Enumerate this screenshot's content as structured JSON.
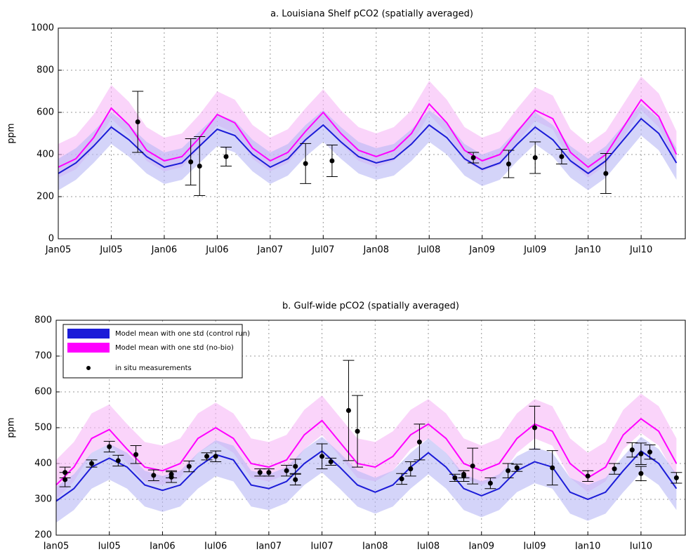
{
  "chart_data": [
    {
      "type": "line",
      "title": "a. Louisiana Shelf pCO2 (spatially averaged)",
      "y_label": "ppm",
      "grid": true,
      "xlim": [
        "2005-01",
        "2010-12"
      ],
      "ylim": [
        0,
        1000
      ],
      "yticks": [
        0,
        200,
        400,
        600,
        800,
        1000
      ],
      "xticks": [
        {
          "value": "2005-01",
          "label": "Jan05"
        },
        {
          "value": "2005-07",
          "label": "Jul05"
        },
        {
          "value": "2006-01",
          "label": "Jan06"
        },
        {
          "value": "2006-07",
          "label": "Jul06"
        },
        {
          "value": "2007-01",
          "label": "Jan07"
        },
        {
          "value": "2007-07",
          "label": "Jul07"
        },
        {
          "value": "2008-01",
          "label": "Jan08"
        },
        {
          "value": "2008-07",
          "label": "Jul08"
        },
        {
          "value": "2009-01",
          "label": "Jan09"
        },
        {
          "value": "2009-07",
          "label": "Jul09"
        },
        {
          "value": "2010-01",
          "label": "Jan10"
        },
        {
          "value": "2010-07",
          "label": "Jul10"
        }
      ],
      "x": [
        "2005-01",
        "2005-03",
        "2005-05",
        "2005-07",
        "2005-09",
        "2005-11",
        "2006-01",
        "2006-03",
        "2006-05",
        "2006-07",
        "2006-09",
        "2006-11",
        "2007-01",
        "2007-03",
        "2007-05",
        "2007-07",
        "2007-09",
        "2007-11",
        "2008-01",
        "2008-03",
        "2008-05",
        "2008-07",
        "2008-09",
        "2008-11",
        "2009-01",
        "2009-03",
        "2009-05",
        "2009-07",
        "2009-09",
        "2009-11",
        "2010-01",
        "2010-03",
        "2010-05",
        "2010-07",
        "2010-09",
        "2010-11"
      ],
      "series": [
        {
          "color": "#ff00ff",
          "band_color": "#f7b8f7",
          "values": [
            340,
            380,
            480,
            620,
            540,
            420,
            370,
            390,
            480,
            590,
            550,
            430,
            370,
            410,
            510,
            600,
            500,
            420,
            390,
            420,
            500,
            640,
            550,
            420,
            370,
            400,
            510,
            610,
            570,
            410,
            340,
            400,
            530,
            660,
            580,
            400
          ],
          "lower": [
            290,
            330,
            430,
            570,
            490,
            370,
            320,
            340,
            430,
            540,
            500,
            380,
            320,
            360,
            460,
            550,
            450,
            370,
            340,
            370,
            450,
            590,
            500,
            370,
            320,
            350,
            460,
            560,
            520,
            360,
            290,
            350,
            480,
            610,
            530,
            350
          ],
          "upper": [
            450,
            490,
            590,
            730,
            650,
            530,
            480,
            500,
            590,
            700,
            660,
            540,
            480,
            520,
            620,
            710,
            610,
            530,
            500,
            530,
            610,
            750,
            660,
            530,
            480,
            510,
            620,
            720,
            680,
            520,
            450,
            510,
            640,
            770,
            690,
            510
          ]
        },
        {
          "color": "#1c1cd8",
          "band_color": "#b8b8f5",
          "values": [
            310,
            360,
            440,
            530,
            470,
            390,
            340,
            360,
            440,
            520,
            490,
            400,
            340,
            380,
            470,
            540,
            460,
            390,
            360,
            380,
            450,
            540,
            480,
            380,
            330,
            360,
            450,
            530,
            470,
            370,
            310,
            370,
            470,
            570,
            500,
            360
          ],
          "lower": [
            230,
            280,
            360,
            450,
            390,
            310,
            260,
            280,
            360,
            440,
            410,
            320,
            260,
            300,
            390,
            460,
            380,
            310,
            280,
            300,
            370,
            460,
            400,
            300,
            250,
            280,
            370,
            450,
            390,
            290,
            230,
            290,
            390,
            490,
            420,
            280
          ],
          "upper": [
            380,
            430,
            510,
            600,
            540,
            460,
            410,
            430,
            510,
            590,
            560,
            470,
            410,
            450,
            540,
            610,
            530,
            460,
            430,
            450,
            520,
            610,
            550,
            450,
            400,
            430,
            520,
            600,
            540,
            440,
            380,
            440,
            540,
            640,
            570,
            430
          ]
        }
      ],
      "points": {
        "color": "#000000",
        "x": [
          "2005-10",
          "2006-04",
          "2006-05",
          "2006-08",
          "2007-05",
          "2007-08",
          "2008-12",
          "2009-04",
          "2009-07",
          "2009-10",
          "2010-03"
        ],
        "values": [
          555,
          365,
          345,
          390,
          357,
          370,
          385,
          355,
          385,
          390,
          310
        ],
        "errors": [
          145,
          110,
          140,
          45,
          95,
          75,
          25,
          65,
          75,
          35,
          95
        ]
      }
    },
    {
      "type": "line",
      "title": "b. Gulf-wide pCO2 (spatially averaged)",
      "y_label": "ppm",
      "grid": true,
      "legend": "upper left",
      "xlim": [
        "2005-01",
        "2010-12"
      ],
      "ylim": [
        200,
        800
      ],
      "yticks": [
        200,
        300,
        400,
        500,
        600,
        700,
        800
      ],
      "xticks": [
        {
          "value": "2005-01",
          "label": "Jan05"
        },
        {
          "value": "2005-07",
          "label": "Jul05"
        },
        {
          "value": "2006-01",
          "label": "Jan06"
        },
        {
          "value": "2006-07",
          "label": "Jul06"
        },
        {
          "value": "2007-01",
          "label": "Jan07"
        },
        {
          "value": "2007-07",
          "label": "Jul07"
        },
        {
          "value": "2008-01",
          "label": "Jan08"
        },
        {
          "value": "2008-07",
          "label": "Jul08"
        },
        {
          "value": "2009-01",
          "label": "Jan09"
        },
        {
          "value": "2009-07",
          "label": "Jul09"
        },
        {
          "value": "2010-01",
          "label": "Jan10"
        },
        {
          "value": "2010-07",
          "label": "Jul10"
        }
      ],
      "x": [
        "2005-01",
        "2005-03",
        "2005-05",
        "2005-07",
        "2005-09",
        "2005-11",
        "2006-01",
        "2006-03",
        "2006-05",
        "2006-07",
        "2006-09",
        "2006-11",
        "2007-01",
        "2007-03",
        "2007-05",
        "2007-07",
        "2007-09",
        "2007-11",
        "2008-01",
        "2008-03",
        "2008-05",
        "2008-07",
        "2008-09",
        "2008-11",
        "2009-01",
        "2009-03",
        "2009-05",
        "2009-07",
        "2009-09",
        "2009-11",
        "2010-01",
        "2010-03",
        "2010-05",
        "2010-07",
        "2010-09",
        "2010-11"
      ],
      "series": [
        {
          "name": "Model mean with one std (no-bio)",
          "color": "#ff00ff",
          "band_color": "#f7b8f7",
          "values": [
            340,
            390,
            470,
            495,
            440,
            390,
            380,
            400,
            470,
            500,
            470,
            400,
            390,
            410,
            480,
            520,
            460,
            400,
            390,
            420,
            480,
            510,
            470,
            400,
            380,
            400,
            470,
            510,
            490,
            400,
            360,
            390,
            480,
            525,
            490,
            400
          ],
          "lower": [
            300,
            350,
            430,
            455,
            400,
            350,
            340,
            360,
            430,
            460,
            430,
            360,
            350,
            370,
            440,
            480,
            420,
            360,
            350,
            380,
            440,
            470,
            430,
            360,
            340,
            360,
            430,
            470,
            450,
            360,
            320,
            350,
            440,
            485,
            450,
            360
          ],
          "upper": [
            410,
            460,
            540,
            565,
            510,
            460,
            450,
            470,
            540,
            570,
            540,
            470,
            460,
            480,
            550,
            590,
            530,
            470,
            460,
            490,
            550,
            580,
            540,
            470,
            450,
            470,
            540,
            580,
            560,
            470,
            430,
            460,
            550,
            595,
            560,
            470
          ]
        },
        {
          "name": "Model mean with one std (control run)",
          "color": "#1c1cd8",
          "band_color": "#b8b8f5",
          "values": [
            295,
            330,
            390,
            415,
            390,
            340,
            325,
            340,
            390,
            425,
            410,
            340,
            330,
            350,
            400,
            435,
            390,
            340,
            320,
            340,
            390,
            430,
            390,
            330,
            310,
            330,
            380,
            405,
            390,
            320,
            300,
            320,
            380,
            435,
            400,
            330
          ],
          "lower": [
            235,
            270,
            330,
            355,
            330,
            280,
            265,
            280,
            330,
            365,
            350,
            280,
            270,
            290,
            340,
            375,
            330,
            280,
            260,
            280,
            330,
            370,
            330,
            270,
            250,
            270,
            320,
            345,
            330,
            260,
            240,
            260,
            320,
            375,
            340,
            270
          ],
          "upper": [
            335,
            370,
            430,
            455,
            430,
            380,
            365,
            380,
            430,
            465,
            450,
            380,
            370,
            390,
            440,
            475,
            430,
            380,
            360,
            380,
            430,
            470,
            430,
            370,
            350,
            370,
            420,
            445,
            430,
            360,
            340,
            360,
            420,
            475,
            440,
            370
          ]
        }
      ],
      "points": {
        "name": "in situ measurements",
        "color": "#000000",
        "x": [
          "2005-02",
          "2005-02",
          "2005-05",
          "2005-07",
          "2005-08",
          "2005-10",
          "2005-12",
          "2006-02",
          "2006-02",
          "2006-04",
          "2006-06",
          "2006-07",
          "2006-12",
          "2007-01",
          "2007-03",
          "2007-04",
          "2007-04",
          "2007-07",
          "2007-08",
          "2007-10",
          "2007-11",
          "2008-04",
          "2008-05",
          "2008-06",
          "2008-10",
          "2008-11",
          "2008-11",
          "2008-12",
          "2009-02",
          "2009-04",
          "2009-05",
          "2009-07",
          "2009-09",
          "2010-01",
          "2010-04",
          "2010-06",
          "2010-07",
          "2010-07",
          "2010-08",
          "2010-11"
        ],
        "values": [
          355,
          375,
          400,
          447,
          408,
          425,
          367,
          362,
          370,
          392,
          420,
          420,
          375,
          375,
          380,
          355,
          392,
          420,
          405,
          548,
          490,
          357,
          385,
          460,
          360,
          365,
          370,
          393,
          345,
          380,
          388,
          500,
          388,
          365,
          385,
          438,
          427,
          372,
          432,
          360
        ],
        "errors": [
          20,
          15,
          10,
          15,
          15,
          25,
          15,
          15,
          10,
          15,
          10,
          15,
          10,
          10,
          15,
          15,
          20,
          35,
          10,
          140,
          100,
          15,
          20,
          50,
          10,
          15,
          10,
          50,
          15,
          20,
          10,
          60,
          48,
          15,
          15,
          20,
          30,
          20,
          20,
          15
        ]
      }
    }
  ]
}
